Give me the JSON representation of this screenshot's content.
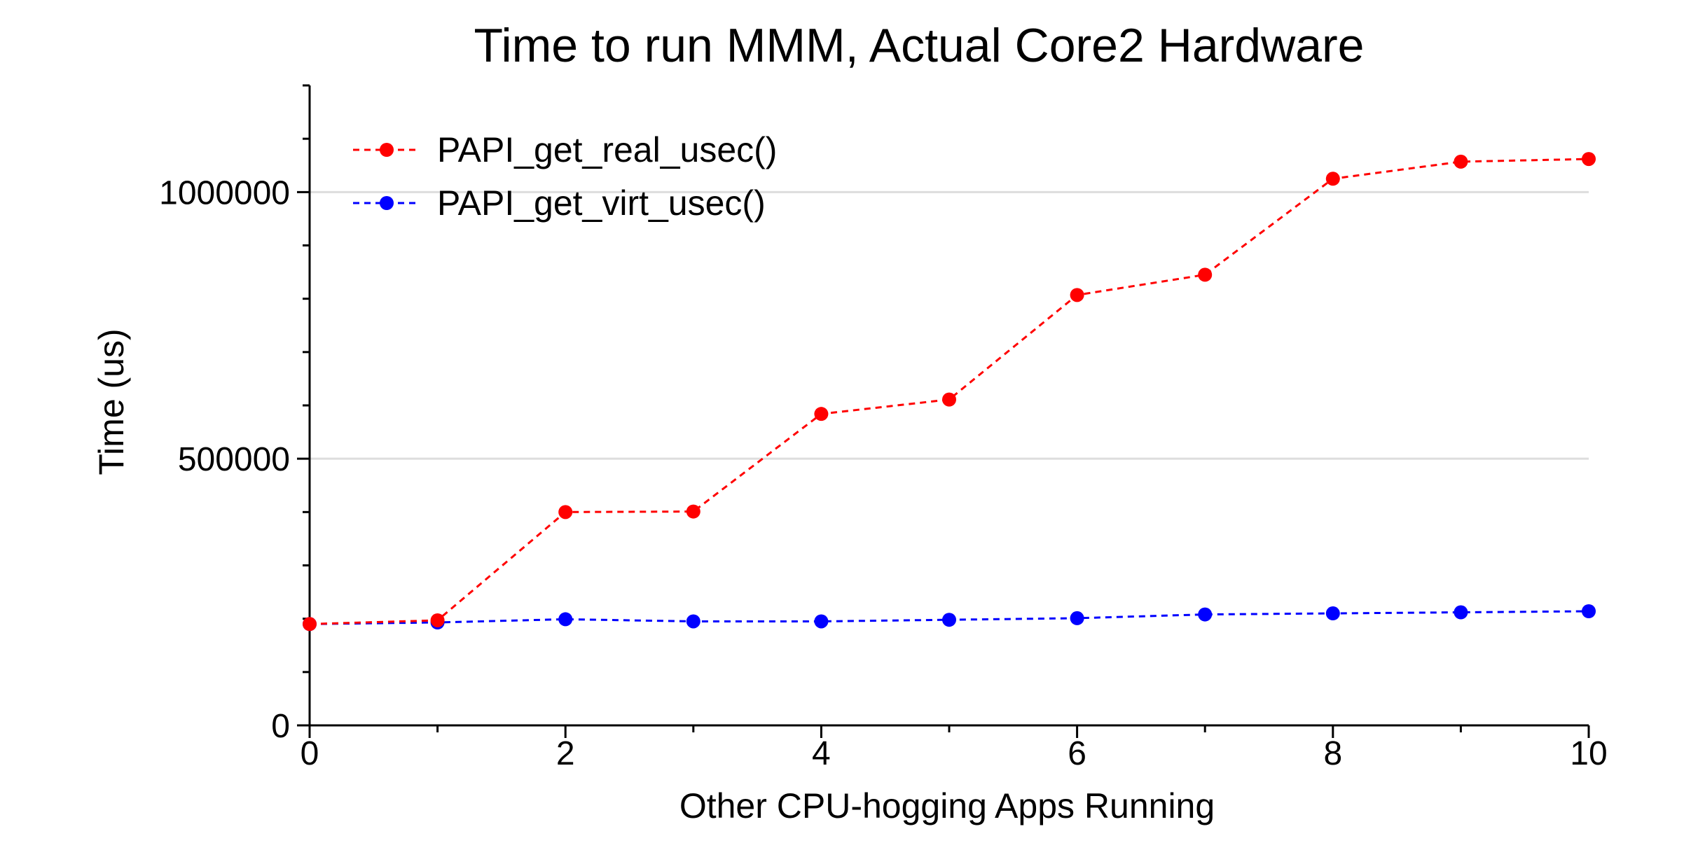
{
  "chart_data": {
    "type": "line",
    "title": "Time to run MMM, Actual Core2 Hardware",
    "xlabel": "Other CPU-hogging Apps Running",
    "ylabel": "Time (us)",
    "xlim": [
      0,
      10
    ],
    "ylim": [
      0,
      1200000
    ],
    "xticks": [
      0,
      2,
      4,
      6,
      8,
      10
    ],
    "yticks": [
      0,
      500000,
      1000000
    ],
    "x_tick_labels": [
      "0",
      "2",
      "4",
      "6",
      "8",
      "10"
    ],
    "y_tick_labels": [
      "0",
      "500000",
      "1000000"
    ],
    "grid": "horizontal",
    "legend_position": "top-left",
    "x": [
      0,
      1,
      2,
      3,
      4,
      5,
      6,
      7,
      8,
      9,
      10
    ],
    "series": [
      {
        "name": "PAPI_get_real_usec()",
        "color": "#ff0000",
        "values": [
          190000,
          197000,
          400000,
          401000,
          584000,
          611000,
          807000,
          845000,
          1025000,
          1057000,
          1062000
        ]
      },
      {
        "name": "PAPI_get_virt_usec()",
        "color": "#0000ff",
        "values": [
          190000,
          193000,
          199000,
          195000,
          195000,
          198000,
          201000,
          208000,
          210000,
          212000,
          214000
        ]
      }
    ]
  }
}
